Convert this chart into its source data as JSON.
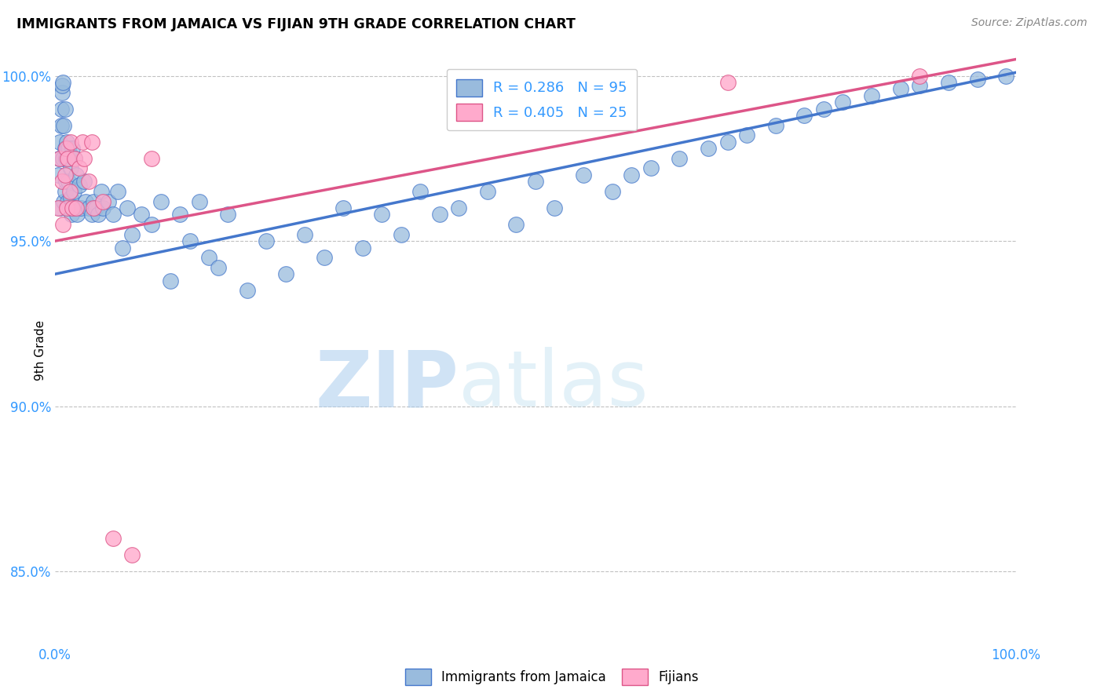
{
  "title": "IMMIGRANTS FROM JAMAICA VS FIJIAN 9TH GRADE CORRELATION CHART",
  "source": "Source: ZipAtlas.com",
  "ylabel": "9th Grade",
  "watermark_zip": "ZIP",
  "watermark_atlas": "atlas",
  "legend_r1": "R = 0.286",
  "legend_n1": "N = 95",
  "legend_r2": "R = 0.405",
  "legend_n2": "N = 25",
  "blue_fill": "#99BBDD",
  "blue_edge": "#4477CC",
  "pink_fill": "#FFAACC",
  "pink_edge": "#DD5588",
  "blue_line": "#4477CC",
  "pink_line": "#DD5588",
  "axis_color": "#3399FF",
  "grid_color": "#BBBBBB",
  "xlim": [
    0.0,
    1.0
  ],
  "ylim": [
    0.828,
    1.006
  ],
  "yticks": [
    0.85,
    0.9,
    0.95,
    1.0
  ],
  "ytick_labels": [
    "85.0%",
    "90.0%",
    "95.0%",
    "100.0%"
  ],
  "xtick_labels_show": [
    "0.0%",
    "100.0%"
  ],
  "blue_x": [
    0.003,
    0.004,
    0.005,
    0.005,
    0.006,
    0.006,
    0.007,
    0.007,
    0.008,
    0.008,
    0.009,
    0.009,
    0.01,
    0.01,
    0.01,
    0.011,
    0.011,
    0.012,
    0.012,
    0.013,
    0.013,
    0.014,
    0.014,
    0.015,
    0.015,
    0.016,
    0.016,
    0.017,
    0.018,
    0.019,
    0.02,
    0.021,
    0.022,
    0.023,
    0.025,
    0.027,
    0.03,
    0.032,
    0.035,
    0.038,
    0.04,
    0.042,
    0.045,
    0.048,
    0.05,
    0.055,
    0.06,
    0.065,
    0.07,
    0.075,
    0.08,
    0.09,
    0.1,
    0.11,
    0.12,
    0.13,
    0.14,
    0.15,
    0.16,
    0.17,
    0.18,
    0.2,
    0.22,
    0.24,
    0.26,
    0.28,
    0.3,
    0.32,
    0.34,
    0.36,
    0.38,
    0.4,
    0.42,
    0.45,
    0.48,
    0.5,
    0.52,
    0.55,
    0.58,
    0.6,
    0.62,
    0.65,
    0.68,
    0.7,
    0.72,
    0.75,
    0.78,
    0.8,
    0.82,
    0.85,
    0.88,
    0.9,
    0.93,
    0.96,
    0.99
  ],
  "blue_y": [
    0.97,
    0.975,
    0.98,
    0.96,
    0.985,
    0.99,
    0.995,
    0.997,
    0.975,
    0.998,
    0.962,
    0.985,
    0.978,
    0.965,
    0.99,
    0.975,
    0.968,
    0.98,
    0.96,
    0.975,
    0.962,
    0.978,
    0.968,
    0.975,
    0.96,
    0.972,
    0.963,
    0.958,
    0.978,
    0.965,
    0.975,
    0.96,
    0.97,
    0.958,
    0.967,
    0.96,
    0.968,
    0.962,
    0.96,
    0.958,
    0.962,
    0.96,
    0.958,
    0.965,
    0.96,
    0.962,
    0.958,
    0.965,
    0.948,
    0.96,
    0.952,
    0.958,
    0.955,
    0.962,
    0.938,
    0.958,
    0.95,
    0.962,
    0.945,
    0.942,
    0.958,
    0.935,
    0.95,
    0.94,
    0.952,
    0.945,
    0.96,
    0.948,
    0.958,
    0.952,
    0.965,
    0.958,
    0.96,
    0.965,
    0.955,
    0.968,
    0.96,
    0.97,
    0.965,
    0.97,
    0.972,
    0.975,
    0.978,
    0.98,
    0.982,
    0.985,
    0.988,
    0.99,
    0.992,
    0.994,
    0.996,
    0.997,
    0.998,
    0.999,
    1.0
  ],
  "pink_x": [
    0.003,
    0.005,
    0.007,
    0.008,
    0.01,
    0.011,
    0.012,
    0.013,
    0.015,
    0.016,
    0.018,
    0.02,
    0.022,
    0.025,
    0.028,
    0.03,
    0.035,
    0.038,
    0.04,
    0.05,
    0.06,
    0.08,
    0.1,
    0.7,
    0.9
  ],
  "pink_y": [
    0.96,
    0.975,
    0.968,
    0.955,
    0.97,
    0.978,
    0.96,
    0.975,
    0.965,
    0.98,
    0.96,
    0.975,
    0.96,
    0.972,
    0.98,
    0.975,
    0.968,
    0.98,
    0.96,
    0.962,
    0.86,
    0.855,
    0.975,
    0.998,
    1.0
  ],
  "blue_line_start_x": 0.0,
  "blue_line_start_y": 0.94,
  "blue_line_end_x": 1.0,
  "blue_line_end_y": 1.001,
  "pink_line_start_x": 0.0,
  "pink_line_start_y": 0.95,
  "pink_line_end_x": 1.0,
  "pink_line_end_y": 1.005
}
